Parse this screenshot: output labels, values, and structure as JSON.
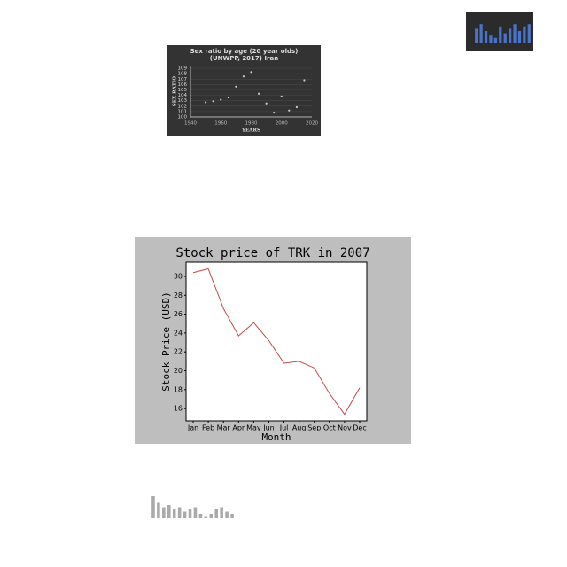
{
  "chart_data": [
    {
      "type": "scatter",
      "title": [
        "Sex ratio by age (20 year olds)",
        "(UNWPP, 2017) Iran"
      ],
      "xlabel": "YEARS",
      "ylabel": "SEX RATIO",
      "x": [
        1950,
        1955,
        1960,
        1965,
        1970,
        1975,
        1980,
        1985,
        1990,
        1995,
        2000,
        2005,
        2010,
        2015
      ],
      "values": [
        102.7,
        102.9,
        103.2,
        103.6,
        105.6,
        107.5,
        108.3,
        104.3,
        102.5,
        100.8,
        103.8,
        101.2,
        101.8,
        106.8
      ],
      "color": "#cccccc",
      "xlim": [
        1940,
        2020
      ],
      "xticks": [
        1940,
        1960,
        1980,
        2000,
        2020
      ],
      "ylim": [
        100,
        109.5
      ],
      "yticks": [
        100,
        101,
        102,
        103,
        104,
        105,
        106,
        107,
        108,
        109
      ],
      "grid": true
    },
    {
      "type": "bar",
      "categories": [
        null,
        null,
        null,
        null,
        null,
        null,
        null,
        null,
        null,
        null,
        null,
        null
      ],
      "values": [
        6,
        8,
        5,
        3,
        2,
        7,
        4,
        6,
        8,
        5,
        7,
        8
      ],
      "color": "#4a72c8",
      "ylim": [
        0,
        10
      ]
    },
    {
      "type": "line",
      "title": "Stock price of TRK in 2007",
      "xlabel": "Month",
      "ylabel": "Stock Price (USD)",
      "categories": [
        "Jan",
        "Feb",
        "Mar",
        "Apr",
        "May",
        "Jun",
        "Jul",
        "Aug",
        "Sep",
        "Oct",
        "Nov",
        "Dec"
      ],
      "values": [
        30.4,
        30.8,
        26.6,
        23.7,
        25.1,
        23.2,
        20.8,
        21.0,
        20.3,
        17.6,
        15.4,
        18.2
      ],
      "color": "#c84848",
      "ylim": [
        14.7,
        31.5
      ],
      "yticks": [
        16,
        18,
        20,
        22,
        24,
        26,
        28,
        30
      ]
    },
    {
      "type": "bar",
      "categories": [
        null,
        null,
        null,
        null,
        null,
        null,
        null,
        null,
        null,
        null,
        null,
        null,
        null,
        null,
        null,
        null
      ],
      "values": [
        10,
        7,
        5,
        6,
        4,
        5,
        3,
        4,
        5,
        2,
        1,
        2,
        4,
        5,
        3,
        2
      ],
      "color": "#aaaaaa",
      "ylim": [
        0,
        12
      ]
    }
  ]
}
